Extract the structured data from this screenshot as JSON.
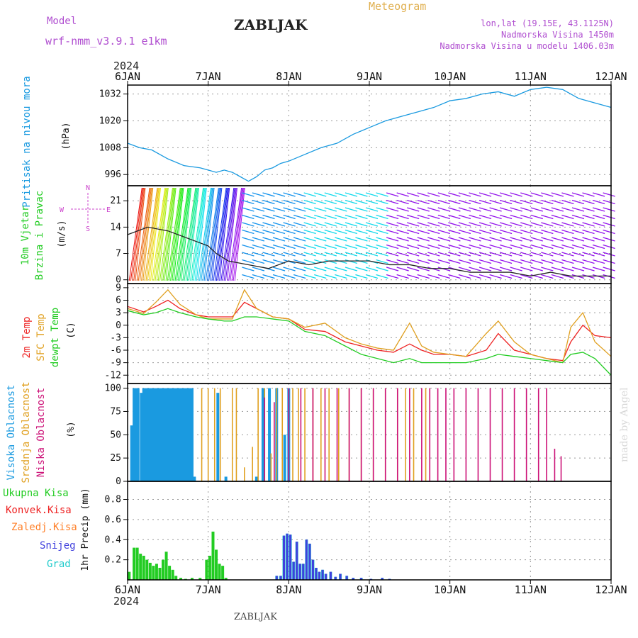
{
  "header": {
    "model_label": "Model",
    "model_name": "wrf-nmm_v3.9.1 e1km",
    "station": "ZABLJAK",
    "product": "Meteogram",
    "coords": "lon,lat (19.15E, 43.1125N)",
    "elevation": "Nadmorska Visina 1450m",
    "model_elevation": "Nadmorska Visina u modelu 1406.03m",
    "year": "2024",
    "footer_station": "ZABLJAK",
    "watermark": "made by Angel"
  },
  "x_axis": {
    "labels": [
      "6JAN",
      "7JAN",
      "8JAN",
      "9JAN",
      "10JAN",
      "11JAN",
      "12JAN"
    ],
    "range_days": [
      0,
      6
    ]
  },
  "colors": {
    "pressure": "#1a9ae0",
    "t2m": "#ee2222",
    "sfc": "#e0a020",
    "dew": "#22cc22",
    "high": "#1a9ae0",
    "mid": "#e0a020",
    "low": "#cc1177",
    "total": "#22cc22",
    "conv": "#ee2222",
    "frozen": "#ff7f27",
    "snow": "#4040dd",
    "graupel": "#22cccc",
    "wind_label": "#22cc22",
    "wind_dir": "#cc44cc"
  },
  "chart_data": [
    {
      "type": "line",
      "panel": "pressure",
      "ylabel_outer": "Pritisak na nivou mora",
      "unit": "(hPa)",
      "ylim": [
        991,
        1036
      ],
      "yticks": [
        996,
        1008,
        1020,
        1032
      ],
      "x_days": [
        0,
        0.15,
        0.3,
        0.5,
        0.7,
        0.9,
        1.0,
        1.1,
        1.2,
        1.3,
        1.4,
        1.5,
        1.6,
        1.7,
        1.8,
        1.9,
        2.0,
        2.2,
        2.4,
        2.6,
        2.8,
        3.0,
        3.2,
        3.4,
        3.6,
        3.8,
        4.0,
        4.2,
        4.4,
        4.6,
        4.8,
        5.0,
        5.2,
        5.4,
        5.6,
        5.8,
        6.0
      ],
      "series": [
        {
          "values": [
            1010,
            1008,
            1007,
            1003,
            1000,
            999,
            998,
            997,
            998,
            997,
            995,
            993,
            995,
            998,
            999,
            1001,
            1002,
            1005,
            1008,
            1010,
            1014,
            1017,
            1020,
            1022,
            1024,
            1026,
            1029,
            1030,
            1032,
            1033,
            1031,
            1034,
            1035,
            1034,
            1030,
            1028,
            1026
          ]
        }
      ]
    },
    {
      "type": "line",
      "panel": "wind",
      "ylabel_outer": [
        "10m Vjetar",
        "Brzina i Pravac"
      ],
      "unit": "(m/s)",
      "direction_legend": [
        "N",
        "S",
        "E",
        "W"
      ],
      "ylim": [
        -1,
        25
      ],
      "yticks": [
        0,
        7,
        14,
        21
      ],
      "x_days": [
        0,
        0.25,
        0.5,
        0.75,
        1.0,
        1.1,
        1.25,
        1.5,
        1.75,
        2.0,
        2.25,
        2.5,
        2.75,
        3.0,
        3.25,
        3.5,
        3.75,
        4.0,
        4.25,
        4.5,
        4.75,
        5.0,
        5.25,
        5.5,
        5.75,
        6.0
      ],
      "series": [
        {
          "name": "speed",
          "values": [
            12,
            14,
            13,
            11,
            9,
            7,
            5,
            4,
            3,
            5,
            4,
            5,
            5,
            5,
            4,
            4,
            3,
            3,
            2,
            2,
            2,
            1,
            2,
            1,
            1,
            1
          ]
        }
      ]
    },
    {
      "type": "line",
      "panel": "temperature",
      "ylabel_outer": [
        "2m Temp",
        "SFC Temp",
        "dewpt Temp"
      ],
      "unit": "(C)",
      "ylim": [
        -14,
        10
      ],
      "yticks": [
        9,
        6,
        3,
        0,
        -3,
        -6,
        -9,
        -12
      ],
      "x_days": [
        0,
        0.2,
        0.35,
        0.5,
        0.65,
        0.85,
        1.0,
        1.2,
        1.3,
        1.45,
        1.6,
        1.8,
        2.0,
        2.2,
        2.45,
        2.7,
        2.9,
        3.1,
        3.3,
        3.5,
        3.65,
        3.8,
        4.0,
        4.2,
        4.45,
        4.6,
        4.8,
        5.0,
        5.2,
        5.4,
        5.5,
        5.65,
        5.8,
        6.0
      ],
      "series": [
        {
          "name": "2m Temp",
          "values": [
            4.5,
            3.2,
            4.5,
            6,
            4,
            2.5,
            2,
            2,
            2,
            5.5,
            4,
            2,
            1.5,
            -1,
            -1.5,
            -4,
            -5,
            -6,
            -6.5,
            -4.5,
            -6,
            -7,
            -7,
            -7.5,
            -6,
            -2,
            -6,
            -7,
            -8,
            -8.5,
            -4,
            0,
            -2.5,
            -3
          ]
        },
        {
          "name": "SFC Temp",
          "values": [
            4,
            2.8,
            5.5,
            8.5,
            5,
            2.5,
            1.5,
            1.5,
            1.5,
            8.5,
            4,
            2,
            1.5,
            -0.5,
            0.5,
            -3,
            -4.5,
            -5.5,
            -6,
            0.5,
            -5,
            -6.5,
            -7,
            -7.5,
            -2,
            1,
            -4,
            -7,
            -8,
            -9,
            -0.5,
            3,
            -4,
            -7.5
          ]
        },
        {
          "name": "dewpt Temp",
          "values": [
            3.5,
            2.5,
            3,
            4,
            3,
            2,
            1.5,
            1,
            1,
            2,
            2,
            1.5,
            1,
            -1.5,
            -2.5,
            -5,
            -7,
            -8,
            -9,
            -8,
            -9,
            -9,
            -9,
            -9,
            -8,
            -7,
            -7.5,
            -8,
            -8.5,
            -9,
            -7,
            -6.5,
            -8,
            -12
          ]
        }
      ]
    },
    {
      "type": "bar",
      "panel": "cloud",
      "ylabel_outer": [
        "Visoka Oblacnost",
        "Srednja Oblacnost",
        "Niska Oblacnost"
      ],
      "unit": "(%)",
      "ylim": [
        0,
        105
      ],
      "yticks": [
        0,
        25,
        50,
        75,
        100
      ],
      "series": [
        {
          "name": "Visoka Oblacnost",
          "x_days": [
            0.05,
            0.08,
            0.1,
            0.13,
            0.17,
            0.2,
            0.23,
            0.26,
            0.29,
            0.32,
            0.35,
            0.38,
            0.41,
            0.44,
            0.47,
            0.5,
            0.53,
            0.56,
            0.59,
            0.62,
            0.65,
            0.68,
            0.71,
            0.74,
            0.77,
            0.8,
            0.83,
            1.12,
            1.22,
            1.6,
            1.68,
            1.76,
            1.85,
            1.95,
            2.0
          ],
          "values": [
            60,
            100,
            100,
            100,
            95,
            100,
            100,
            100,
            100,
            100,
            100,
            100,
            100,
            100,
            100,
            100,
            100,
            100,
            100,
            100,
            100,
            100,
            100,
            100,
            100,
            100,
            5,
            95,
            5,
            5,
            100,
            100,
            100,
            50,
            100
          ]
        },
        {
          "name": "Srednja Oblacnost",
          "x_days": [
            0.92,
            1.0,
            1.08,
            1.15,
            1.3,
            1.35,
            1.45,
            1.55,
            1.62,
            1.7,
            1.78,
            1.85,
            1.92,
            2.05,
            2.12,
            2.2,
            2.3,
            2.4,
            2.5,
            2.62,
            2.75,
            2.9,
            3.05,
            3.2,
            3.35,
            3.45,
            3.55,
            3.7
          ],
          "values": [
            100,
            100,
            100,
            100,
            100,
            100,
            15,
            37,
            100,
            100,
            30,
            100,
            100,
            100,
            100,
            100,
            100,
            100,
            100,
            100,
            100,
            100,
            100,
            100,
            100,
            100,
            100,
            100
          ]
        },
        {
          "name": "Niska Oblacnost",
          "x_days": [
            1.7,
            1.82,
            2.0,
            2.15,
            2.3,
            2.45,
            2.6,
            2.75,
            2.9,
            3.05,
            3.2,
            3.35,
            3.5,
            3.65,
            3.75,
            3.85,
            3.95,
            4.05,
            4.2,
            4.35,
            4.5,
            4.65,
            4.8,
            4.95,
            5.1,
            5.2,
            5.3,
            5.38
          ],
          "values": [
            90,
            85,
            100,
            100,
            100,
            100,
            100,
            100,
            100,
            100,
            100,
            100,
            100,
            100,
            100,
            100,
            100,
            100,
            100,
            100,
            100,
            100,
            100,
            100,
            100,
            100,
            35,
            27
          ]
        }
      ]
    },
    {
      "type": "bar",
      "panel": "precip",
      "ylabel_outer": [
        "Ukupna Kisa",
        "Konvek.Kisa",
        "Zaledj.Kisa",
        "Snijeg",
        "Grad"
      ],
      "ylabel_inner": "1hr Precip (mm)",
      "ylim": [
        0,
        0.98
      ],
      "yticks": [
        0.2,
        0.4,
        0.6,
        0.8
      ],
      "series": [
        {
          "name": "Ukupna Kisa",
          "x_days": [
            0.02,
            0.08,
            0.12,
            0.16,
            0.2,
            0.24,
            0.28,
            0.32,
            0.36,
            0.4,
            0.44,
            0.48,
            0.52,
            0.56,
            0.6,
            0.66,
            0.72,
            0.8,
            0.9,
            0.98,
            1.02,
            1.06,
            1.1,
            1.14,
            1.18,
            1.22
          ],
          "values": [
            0.08,
            0.32,
            0.32,
            0.26,
            0.24,
            0.2,
            0.17,
            0.14,
            0.16,
            0.12,
            0.2,
            0.28,
            0.14,
            0.1,
            0.04,
            0.02,
            0.01,
            0.02,
            0.02,
            0.2,
            0.24,
            0.48,
            0.3,
            0.16,
            0.14,
            0.02
          ]
        },
        {
          "name": "Snijeg",
          "x_days": [
            1.85,
            1.9,
            1.94,
            1.98,
            2.02,
            2.06,
            2.1,
            2.14,
            2.18,
            2.22,
            2.26,
            2.3,
            2.34,
            2.38,
            2.42,
            2.46,
            2.52,
            2.58,
            2.64,
            2.72,
            2.8,
            2.9,
            3.02,
            3.16,
            3.25
          ],
          "values": [
            0.04,
            0.04,
            0.44,
            0.46,
            0.45,
            0.18,
            0.38,
            0.16,
            0.16,
            0.4,
            0.36,
            0.2,
            0.12,
            0.08,
            0.1,
            0.06,
            0.08,
            0.03,
            0.06,
            0.04,
            0.02,
            0.02,
            0.01,
            0.02,
            0.01
          ]
        }
      ]
    }
  ]
}
